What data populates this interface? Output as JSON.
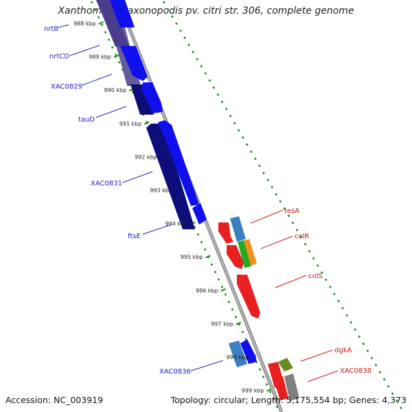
{
  "title": "Xanthomonas axonopodis pv. citri str. 306, complete genome",
  "footer": {
    "accession": "Accession: NC_003919",
    "summary": "Topology: circular; Length: 5,175,554 bp; Genes: 4,373"
  },
  "colors": {
    "backbone": "#8c8c8c",
    "tick": "#1a8a1a",
    "forward_gene": "#1010ee",
    "reverse_gene": "#101080",
    "label_left": "#2020c0",
    "label_right": "#d01010"
  },
  "scale": {
    "ticks": [
      {
        "kbp": 988,
        "label": "988 kbp"
      },
      {
        "kbp": 989,
        "label": "989 kbp"
      },
      {
        "kbp": 990,
        "label": "990 kbp"
      },
      {
        "kbp": 991,
        "label": "991 kbp"
      },
      {
        "kbp": 992,
        "label": "992 kbp"
      },
      {
        "kbp": 993,
        "label": "993 kbp"
      },
      {
        "kbp": 994,
        "label": "994 kbp"
      },
      {
        "kbp": 995,
        "label": "995 kbp"
      },
      {
        "kbp": 996,
        "label": "996 kbp"
      },
      {
        "kbp": 997,
        "label": "997 kbp"
      },
      {
        "kbp": 998,
        "label": "998 kbp"
      },
      {
        "kbp": 999,
        "label": "999 kbp"
      }
    ]
  },
  "gene_labels": {
    "left": [
      "nrtB",
      "nrtCD",
      "XAC0829",
      "tauD",
      "XAC0831",
      "ftsE",
      "XAC0836"
    ],
    "right": [
      "tesA",
      "colR",
      "colS",
      "dgkA",
      "XAC0838"
    ]
  }
}
